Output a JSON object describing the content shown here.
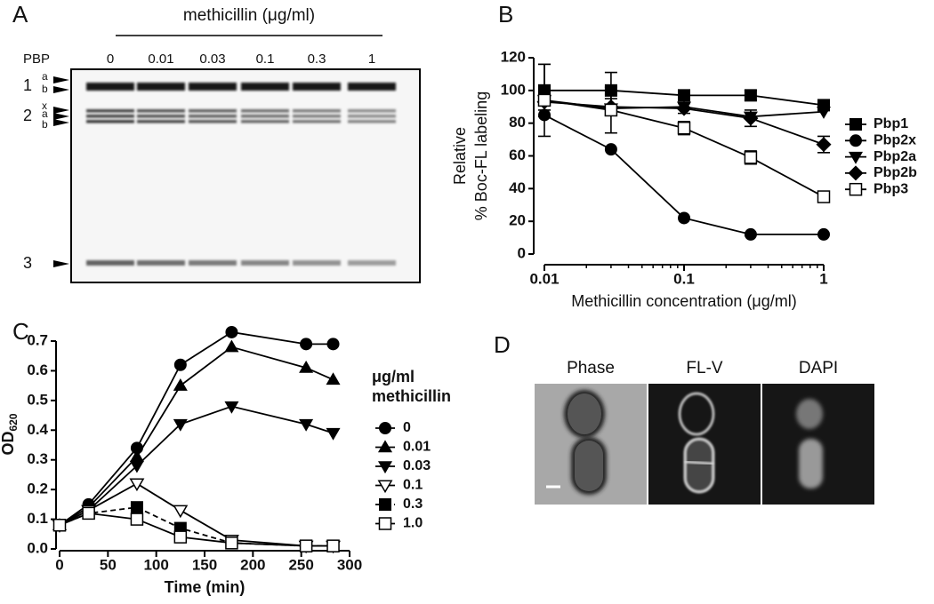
{
  "panel_a": {
    "label": "A",
    "title": "methicillin (μg/ml)",
    "pbp_label": "PBP",
    "concentrations": [
      "0",
      "0.01",
      "0.03",
      "0.1",
      "0.3",
      "1"
    ],
    "bands": [
      {
        "number": "1",
        "subs": [
          "a",
          "b"
        ]
      },
      {
        "number": "2",
        "subs": [
          "x",
          "a",
          "b"
        ]
      },
      {
        "number": "3",
        "subs": []
      }
    ]
  },
  "chart_data": [
    {
      "panel": "B",
      "type": "line",
      "log_x": true,
      "x": [
        0.01,
        0.03,
        0.1,
        0.3,
        1
      ],
      "xlim": [
        0.01,
        1
      ],
      "xticks": [
        0.01,
        0.1,
        1
      ],
      "ylim": [
        0,
        120
      ],
      "yticks": [
        0,
        20,
        40,
        60,
        80,
        100,
        120
      ],
      "xlabel": "Methicillin concentration (μg/ml)",
      "ylabel": [
        "Relative",
        "% Boc-FL labeling"
      ],
      "grid": false,
      "legend": "right",
      "series": [
        {
          "name": "Pbp1",
          "color": "#000000",
          "marker": "square",
          "values": [
            100,
            100,
            97,
            97,
            91
          ],
          "errors": [
            16,
            11,
            3,
            3,
            3
          ]
        },
        {
          "name": "Pbp2x",
          "color": "#000000",
          "marker": "circle",
          "values": [
            85,
            64,
            22,
            12,
            12
          ]
        },
        {
          "name": "Pbp2a",
          "color": "#000000",
          "marker": "triangle-down",
          "values": [
            94,
            89,
            90,
            84,
            87
          ]
        },
        {
          "name": "Pbp2b",
          "color": "#000000",
          "marker": "diamond",
          "values": [
            93,
            90,
            89,
            83,
            67
          ],
          "errors": [
            5,
            5,
            3,
            5,
            5
          ]
        },
        {
          "name": "Pbp3",
          "color": "#000000",
          "marker": "square-open",
          "values": [
            94,
            88,
            77,
            59,
            35
          ],
          "errors": [
            22,
            14,
            4,
            4,
            3
          ]
        }
      ]
    },
    {
      "panel": "C",
      "type": "line",
      "log_x": false,
      "x": [
        0,
        30,
        80,
        125,
        178,
        255,
        283
      ],
      "xlim": [
        0,
        300
      ],
      "xticks": [
        0,
        50,
        100,
        150,
        200,
        250,
        300
      ],
      "ylim": [
        0,
        0.7
      ],
      "yticks": [
        {
          "value": 0,
          "label": "0.0"
        },
        0.1,
        0.2,
        0.3,
        0.4,
        0.5,
        0.6,
        0.7
      ],
      "xlabel": "Time (min)",
      "ylabel": {
        "text": "OD",
        "subscript": "620"
      },
      "legend_title": [
        "μg/ml",
        "methicillin"
      ],
      "grid": false,
      "legend": "right",
      "series": [
        {
          "name": "0",
          "color": "#000000",
          "marker": "circle",
          "values": [
            0.08,
            0.15,
            0.34,
            0.62,
            0.73,
            0.69,
            0.69
          ]
        },
        {
          "name": "0.01",
          "color": "#000000",
          "marker": "triangle-up",
          "values": [
            0.08,
            0.14,
            0.31,
            0.55,
            0.68,
            0.61,
            0.57
          ]
        },
        {
          "name": "0.03",
          "color": "#000000",
          "marker": "triangle-down",
          "values": [
            0.08,
            0.13,
            0.28,
            0.42,
            0.48,
            0.42,
            0.39
          ]
        },
        {
          "name": "0.1",
          "color": "#000000",
          "marker": "triangle-down-open",
          "values": [
            0.08,
            0.13,
            0.22,
            0.13,
            0.03,
            0.01,
            0.01
          ]
        },
        {
          "name": "0.3",
          "color": "#000000",
          "marker": "square",
          "dashed": true,
          "values": [
            0.08,
            0.12,
            0.14,
            0.07,
            0.02,
            0.01,
            0.01
          ]
        },
        {
          "name": "1.0",
          "color": "#000000",
          "marker": "square-open",
          "values": [
            0.08,
            0.12,
            0.1,
            0.04,
            0.02,
            0.01,
            0.01
          ]
        }
      ]
    }
  ],
  "panel_d": {
    "label": "D",
    "channels": [
      "Phase",
      "FL-V",
      "DAPI"
    ]
  }
}
